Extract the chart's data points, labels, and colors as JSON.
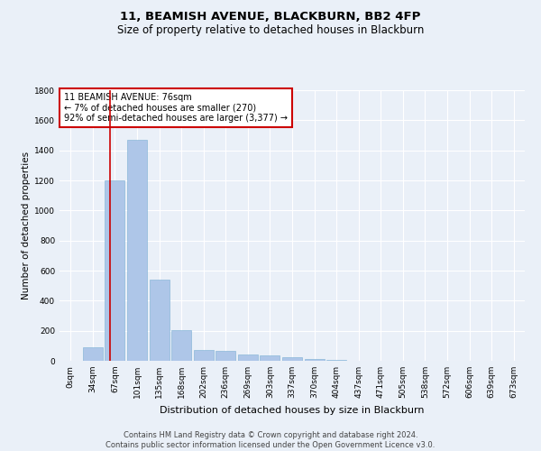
{
  "title": "11, BEAMISH AVENUE, BLACKBURN, BB2 4FP",
  "subtitle": "Size of property relative to detached houses in Blackburn",
  "xlabel": "Distribution of detached houses by size in Blackburn",
  "ylabel": "Number of detached properties",
  "bin_labels": [
    "0sqm",
    "34sqm",
    "67sqm",
    "101sqm",
    "135sqm",
    "168sqm",
    "202sqm",
    "236sqm",
    "269sqm",
    "303sqm",
    "337sqm",
    "370sqm",
    "404sqm",
    "437sqm",
    "471sqm",
    "505sqm",
    "538sqm",
    "572sqm",
    "606sqm",
    "639sqm",
    "673sqm"
  ],
  "bar_values": [
    0,
    90,
    1200,
    1470,
    540,
    205,
    75,
    65,
    45,
    35,
    25,
    15,
    5,
    0,
    0,
    0,
    0,
    0,
    0,
    0,
    0
  ],
  "bar_color": "#aec6e8",
  "bar_edge_color": "#7bafd4",
  "annotation_text": "11 BEAMISH AVENUE: 76sqm\n← 7% of detached houses are smaller (270)\n92% of semi-detached houses are larger (3,377) →",
  "annotation_box_color": "#ffffff",
  "annotation_box_edge": "#cc0000",
  "vline_color": "#cc0000",
  "ylim": [
    0,
    1800
  ],
  "yticks": [
    0,
    200,
    400,
    600,
    800,
    1000,
    1200,
    1400,
    1600,
    1800
  ],
  "background_color": "#eaf0f8",
  "plot_bg_color": "#eaf0f8",
  "footer_text": "Contains HM Land Registry data © Crown copyright and database right 2024.\nContains public sector information licensed under the Open Government Licence v3.0.",
  "title_fontsize": 9.5,
  "subtitle_fontsize": 8.5,
  "xlabel_fontsize": 8,
  "ylabel_fontsize": 7.5,
  "tick_fontsize": 6.5,
  "annotation_fontsize": 7,
  "footer_fontsize": 6
}
